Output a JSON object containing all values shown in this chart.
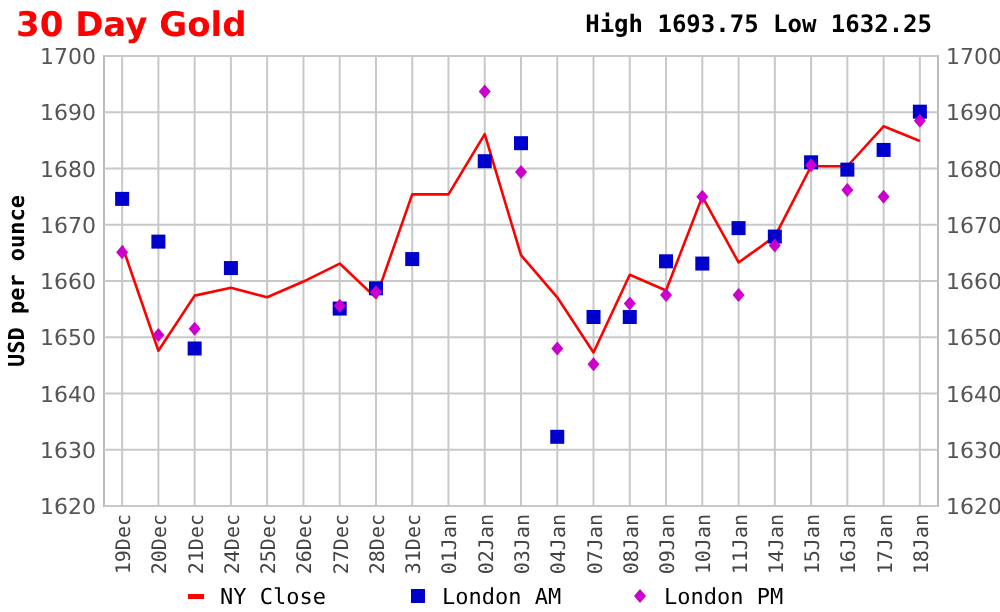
{
  "chart_data": {
    "type": "line",
    "title": "30 Day Gold",
    "subtitle": "High 1693.75 Low 1632.25",
    "ylabel": "USD per ounce",
    "categories": [
      "19Dec",
      "20Dec",
      "21Dec",
      "24Dec",
      "25Dec",
      "26Dec",
      "27Dec",
      "28Dec",
      "31Dec",
      "01Jan",
      "02Jan",
      "03Jan",
      "04Jan",
      "07Jan",
      "08Jan",
      "09Jan",
      "10Jan",
      "11Jan",
      "14Jan",
      "15Jan",
      "16Jan",
      "17Jan",
      "18Jan"
    ],
    "series": [
      {
        "name": "NY Close",
        "marker": "none",
        "line_style": "solid",
        "color": "#ff0000",
        "values": [
          1666.3,
          1647.6,
          1657.4,
          1658.8,
          1657.1,
          1659.9,
          1663.1,
          1657,
          1675.4,
          1675.4,
          1686.1,
          1664.6,
          1657.1,
          1647.3,
          1661.1,
          1658.3,
          1675,
          1663.3,
          1667.9,
          1680.4,
          1680.4,
          1687.5,
          1684.9
        ]
      },
      {
        "name": "London AM",
        "type": "scatter",
        "marker": "square",
        "color": "#0000cc",
        "values": [
          1674.6,
          1667,
          1648,
          1662.3,
          null,
          null,
          1655.1,
          1658.7,
          1663.9,
          null,
          1681.3,
          1684.5,
          1632.3,
          1653.6,
          1653.6,
          1663.5,
          1663.1,
          1669.4,
          1667.9,
          1681.1,
          1679.8,
          1683.3,
          1690.1
        ]
      },
      {
        "name": "London PM",
        "type": "scatter",
        "marker": "diamond",
        "color": "#cc00cc",
        "values": [
          1665.1,
          1650.4,
          1651.5,
          null,
          null,
          null,
          1655.6,
          1658,
          null,
          null,
          1693.7,
          1679.4,
          1648,
          1645.2,
          1656,
          1657.5,
          1675,
          1657.5,
          1666.3,
          1680.6,
          1676.2,
          1675,
          1688.5
        ]
      }
    ],
    "ylim": [
      1620,
      1700
    ],
    "yticks": [
      1620,
      1630,
      1640,
      1650,
      1660,
      1670,
      1680,
      1690,
      1700
    ],
    "y2lim": [
      1620,
      1700
    ],
    "y2ticks": [
      1620,
      1630,
      1640,
      1650,
      1660,
      1670,
      1680,
      1690,
      1700
    ],
    "grid": true,
    "legend": "bottom"
  }
}
